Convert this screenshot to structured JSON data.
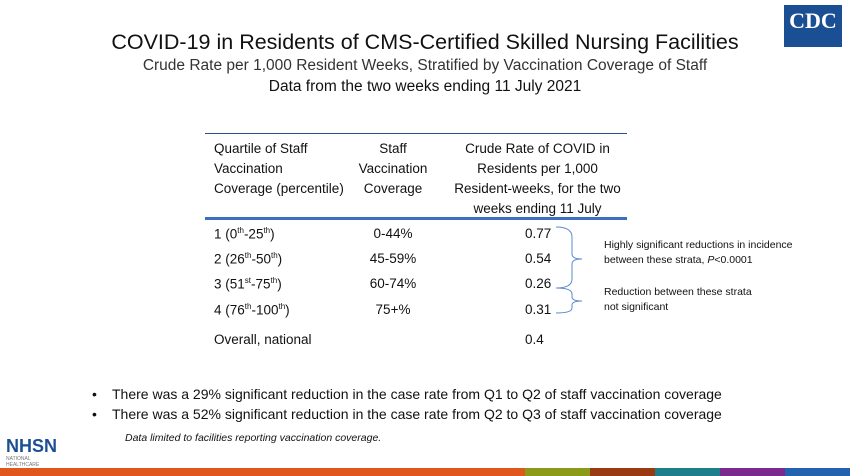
{
  "header": {
    "title": "COVID-19 in Residents of CMS-Certified Skilled Nursing Facilities",
    "subtitle": "Crude Rate per 1,000 Resident Weeks, Stratified by Vaccination Coverage of Staff",
    "subtitle2": "Data from the two weeks ending 11 July 2021",
    "logo": "CDC"
  },
  "table": {
    "headers": [
      "Quartile of Staff Vaccination Coverage (percentile)",
      "Staff Vaccination Coverage",
      "Crude Rate of COVID in Residents per 1,000 Resident-weeks, for the two weeks ending 11 July"
    ],
    "rows": [
      {
        "q": "1 (0",
        "s1": "th",
        "m": "-25",
        "s2": "th",
        "e": ")",
        "cov": "0-44%",
        "rate": "0.77"
      },
      {
        "q": "2 (26",
        "s1": "th",
        "m": "-50",
        "s2": "th",
        "e": ")",
        "cov": "45-59%",
        "rate": "0.54"
      },
      {
        "q": "3 (51",
        "s1": "st",
        "m": "-75",
        "s2": "th",
        "e": ")",
        "cov": "60-74%",
        "rate": "0.26"
      },
      {
        "q": "4 (76",
        "s1": "th",
        "m": "-100",
        "s2": "th",
        "e": ")",
        "cov": "75+%",
        "rate": "0.31"
      }
    ],
    "overall": {
      "label": "Overall, national",
      "rate": "0.4"
    }
  },
  "annotations": {
    "sig1": "Highly significant reductions in incidence",
    "sig2a": "between these strata, ",
    "sig2p": "P",
    "sig2b": "<0.0001",
    "ns1": "Reduction between these strata",
    "ns2": "not significant"
  },
  "bullets": [
    "There was a 29% significant reduction in the case rate from Q1 to Q2 of staff vaccination coverage",
    "There was a 52% significant reduction in the case rate from Q2 to Q3 of staff vaccination coverage"
  ],
  "footnote": "Data limited to facilities reporting vaccination coverage.",
  "nhsn": {
    "name": "NHSN",
    "sub": "NATIONAL HEALTHCARE SAFETY NETWORK"
  },
  "colors": {
    "bar": [
      "#e0571e",
      "#8c9a1a",
      "#9a3a12",
      "#1c7f8a",
      "#7a2a8c",
      "#2462b0"
    ]
  }
}
